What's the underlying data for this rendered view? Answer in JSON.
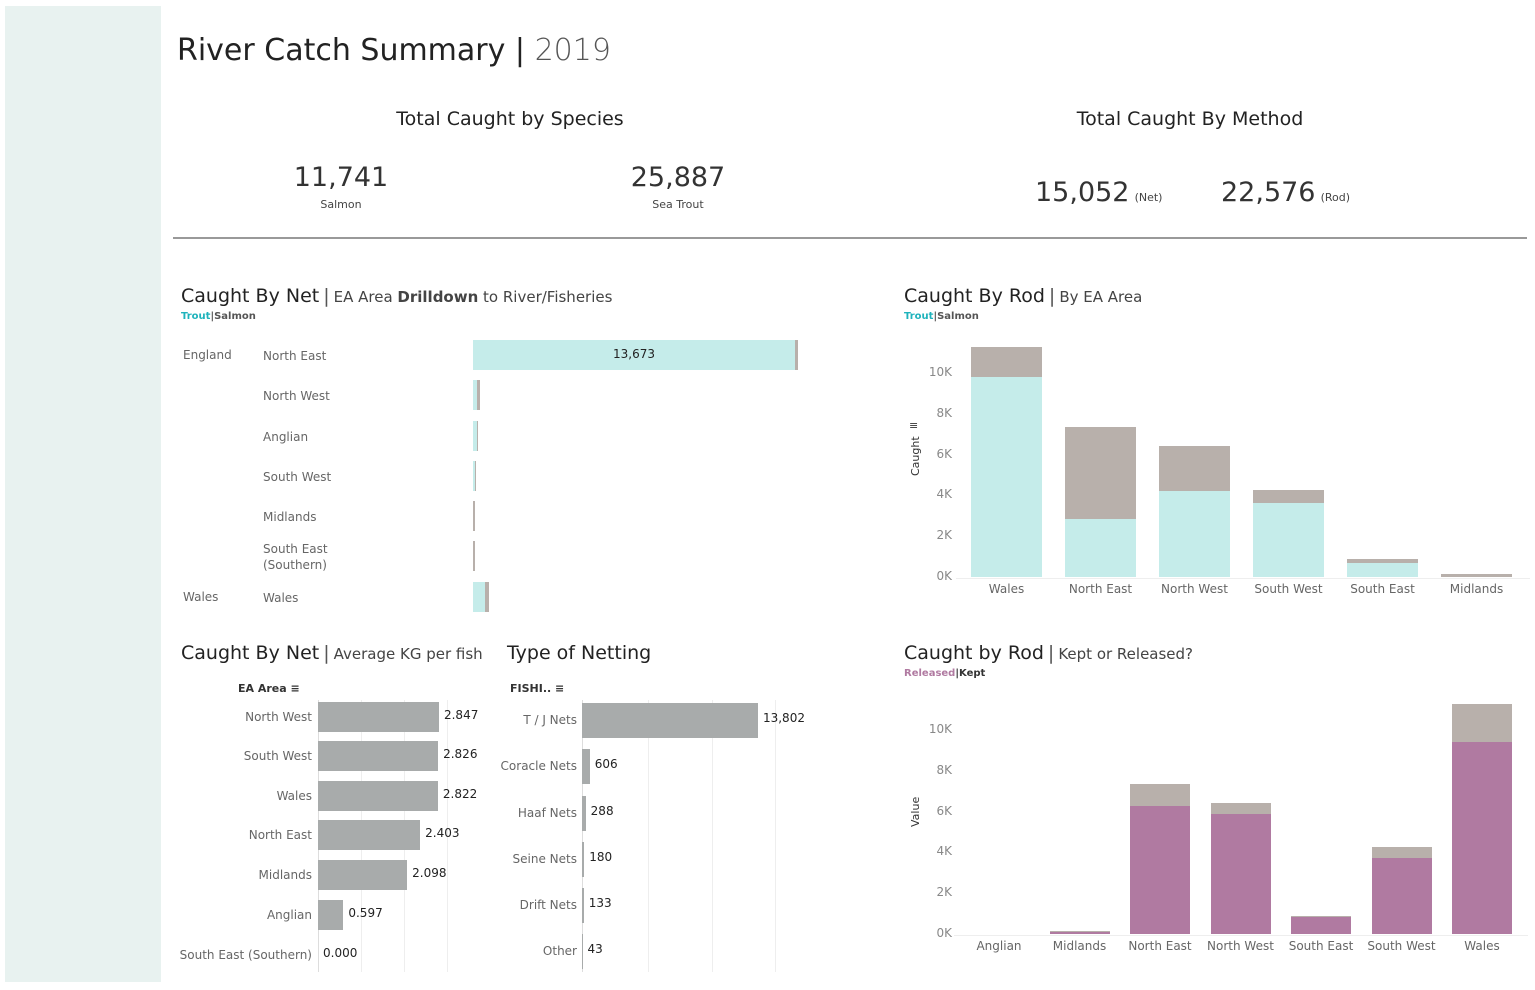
{
  "header": {
    "title": "River Catch Summary",
    "separator": "|",
    "year": "2019"
  },
  "kpi_species": {
    "heading": "Total Caught by Species",
    "items": [
      {
        "value": "11,741",
        "label": "Salmon"
      },
      {
        "value": "25,887",
        "label": "Sea Trout"
      }
    ]
  },
  "kpi_method": {
    "heading": "Total Caught By Method",
    "items": [
      {
        "value": "15,052",
        "label": "(Net)"
      },
      {
        "value": "22,576",
        "label": "(Rod)"
      }
    ]
  },
  "colors": {
    "trout": "#c5ecea",
    "salmon": "#b8b0ab",
    "released": "#b07aa1",
    "kept": "#b8b0ab",
    "gray_bar": "#a8abab",
    "trout_legend": "#1fb3bc",
    "sidebar": "#e8f2f0"
  },
  "chart_data": [
    {
      "id": "net_drilldown",
      "type": "bar",
      "orientation": "horizontal",
      "stacked": true,
      "title": "Caught By Net",
      "subtitle_pre": "EA Area ",
      "subtitle_bold": "Drilldown",
      "subtitle_post": " to River/Fisheries",
      "legend": [
        "Trout",
        "Salmon"
      ],
      "rows": [
        {
          "country": "England",
          "area": "North East",
          "trout": 13550,
          "salmon": 123,
          "label": "13,673"
        },
        {
          "country": "",
          "area": "North West",
          "trout": 170,
          "salmon": 120
        },
        {
          "country": "",
          "area": "Anglian",
          "trout": 150,
          "salmon": 60
        },
        {
          "country": "",
          "area": "South West",
          "trout": 80,
          "salmon": 20
        },
        {
          "country": "",
          "area": "Midlands",
          "trout": 0,
          "salmon": 30
        },
        {
          "country": "",
          "area": "South East (Southern)",
          "trout": 0,
          "salmon": 30
        },
        {
          "country": "Wales",
          "area": "Wales",
          "trout": 500,
          "salmon": 170
        }
      ]
    },
    {
      "id": "rod_by_area",
      "type": "bar",
      "stacked": true,
      "title": "Caught By Rod",
      "subtitle": "By EA Area",
      "legend": [
        "Trout",
        "Salmon"
      ],
      "ylabel": "Caught",
      "ylim": [
        0,
        11500
      ],
      "yticks": [
        "0K",
        "2K",
        "4K",
        "6K",
        "8K",
        "10K"
      ],
      "categories": [
        "Wales",
        "North East",
        "North West",
        "South West",
        "South East",
        "Midlands"
      ],
      "series": [
        {
          "name": "Trout",
          "values": [
            9800,
            2840,
            4200,
            3630,
            690,
            0
          ]
        },
        {
          "name": "Salmon",
          "values": [
            1470,
            4510,
            2220,
            630,
            190,
            150
          ]
        }
      ]
    },
    {
      "id": "avg_kg",
      "type": "bar",
      "orientation": "horizontal",
      "title": "Caught By Net",
      "subtitle": "Average KG per fish",
      "column_header": "EA Area",
      "categories": [
        "North West",
        "South West",
        "Wales",
        "North East",
        "Midlands",
        "Anglian",
        "South East (Southern)"
      ],
      "values": [
        2.847,
        2.826,
        2.822,
        2.403,
        2.098,
        0.597,
        0.0
      ],
      "labels": [
        "2.847",
        "2.826",
        "2.822",
        "2.403",
        "2.098",
        "0.597",
        "0.000"
      ]
    },
    {
      "id": "netting_type",
      "type": "bar",
      "orientation": "horizontal",
      "title": "Type of Netting",
      "column_header": "FISHI..",
      "categories": [
        "T / J Nets",
        "Coracle Nets",
        "Haaf Nets",
        "Seine Nets",
        "Drift Nets",
        "Other"
      ],
      "values": [
        13802,
        606,
        288,
        180,
        133,
        43
      ],
      "labels": [
        "13,802",
        "606",
        "288",
        "180",
        "133",
        "43"
      ]
    },
    {
      "id": "kept_released",
      "type": "bar",
      "stacked": true,
      "title": "Caught by Rod",
      "subtitle": "Kept or Released?",
      "legend": [
        "Released",
        "Kept"
      ],
      "ylabel": "Value",
      "ylim": [
        0,
        11500
      ],
      "yticks": [
        "0K",
        "2K",
        "4K",
        "6K",
        "8K",
        "10K"
      ],
      "categories": [
        "Anglian",
        "Midlands",
        "North East",
        "North West",
        "South East",
        "South West",
        "Wales"
      ],
      "series": [
        {
          "name": "Released",
          "values": [
            0,
            100,
            6270,
            5880,
            830,
            3730,
            9400
          ]
        },
        {
          "name": "Kept",
          "values": [
            0,
            50,
            1080,
            540,
            50,
            530,
            1870
          ]
        }
      ]
    }
  ]
}
